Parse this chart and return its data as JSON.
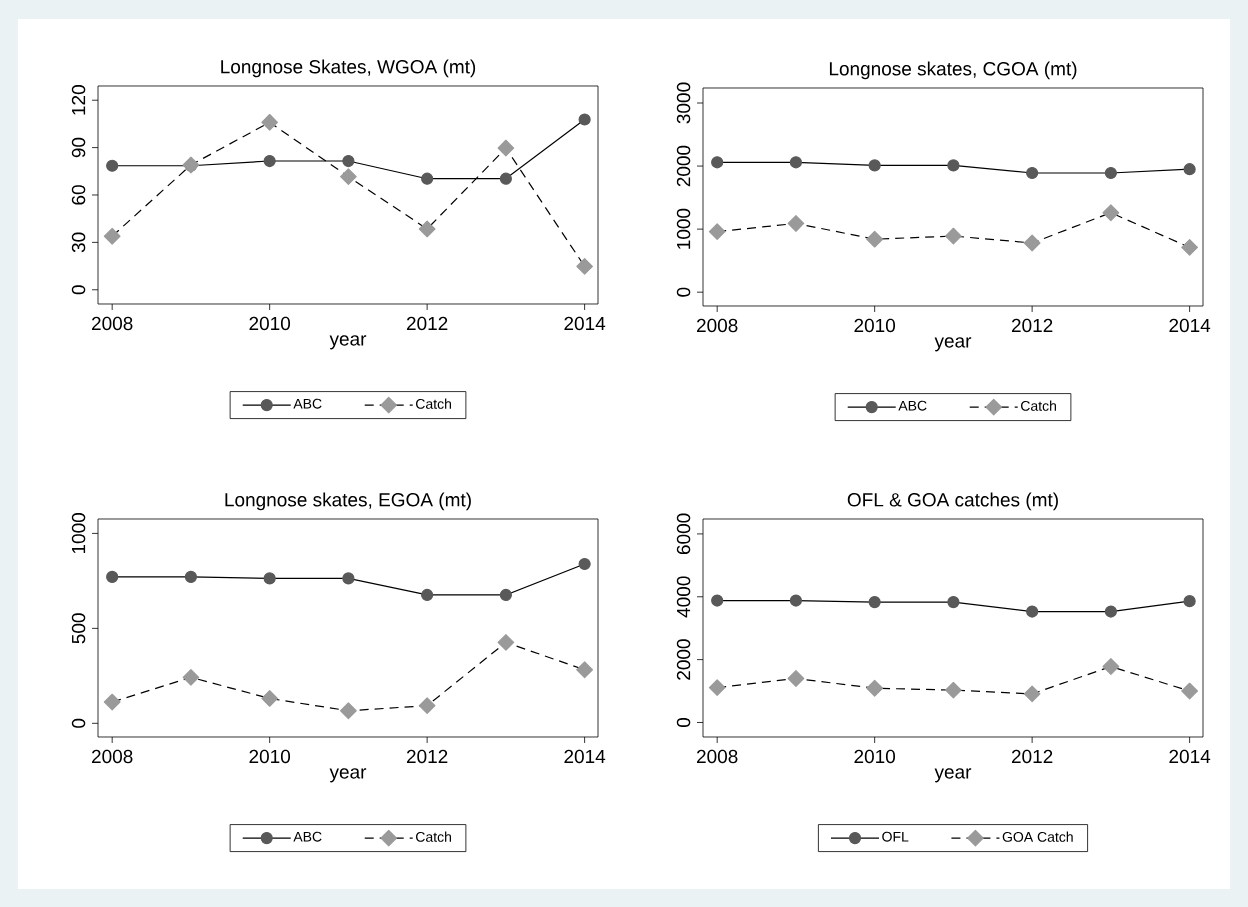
{
  "chart_data": [
    {
      "type": "line",
      "title": "Longnose Skates, WGOA (mt)",
      "xlabel": "year",
      "x": [
        2008,
        2009,
        2010,
        2011,
        2012,
        2013,
        2014
      ],
      "xlim": [
        2007.82,
        2014.17
      ],
      "xticks": [
        2008,
        2010,
        2012,
        2014
      ],
      "ylim": [
        -9,
        129
      ],
      "yticks": [
        0,
        30,
        60,
        90,
        120
      ],
      "legend": "bottom",
      "series": [
        {
          "name": "ABC",
          "color": "#595959",
          "marker": "circle",
          "line_style": "solid",
          "values": [
            78.5,
            78.5,
            81.5,
            81.5,
            70.3,
            70.3,
            107.8
          ]
        },
        {
          "name": "Catch",
          "color": "#9a9a9a",
          "marker": "diamond",
          "line_style": "dashed",
          "values": [
            33.9,
            79,
            106,
            71.6,
            38.5,
            89.7,
            14.8
          ]
        }
      ]
    },
    {
      "type": "line",
      "title": "Longnose skates, CGOA (mt)",
      "xlabel": "year",
      "x": [
        2008,
        2009,
        2010,
        2011,
        2012,
        2013,
        2014
      ],
      "xlim": [
        2007.82,
        2014.17
      ],
      "xticks": [
        2008,
        2010,
        2012,
        2014
      ],
      "ylim": [
        -219,
        3238
      ],
      "yticks": [
        0,
        1000,
        2000,
        3000
      ],
      "legend": "bottom",
      "series": [
        {
          "name": "ABC",
          "color": "#595959",
          "marker": "circle",
          "line_style": "solid",
          "values": [
            2060,
            2060,
            2010,
            2010,
            1890,
            1890,
            1950
          ]
        },
        {
          "name": "Catch",
          "color": "#9a9a9a",
          "marker": "diamond",
          "line_style": "dashed",
          "values": [
            960,
            1090,
            840,
            890,
            780,
            1260,
            710
          ]
        }
      ]
    },
    {
      "type": "line",
      "title": "Longnose skates, EGOA (mt)",
      "xlabel": "year",
      "x": [
        2008,
        2009,
        2010,
        2011,
        2012,
        2013,
        2014
      ],
      "xlim": [
        2007.82,
        2014.17
      ],
      "xticks": [
        2008,
        2010,
        2012,
        2014
      ],
      "ylim": [
        -72,
        1076
      ],
      "yticks": [
        0,
        500,
        1000
      ],
      "legend": "bottom",
      "series": [
        {
          "name": "ABC",
          "color": "#595959",
          "marker": "circle",
          "line_style": "solid",
          "values": [
            771,
            771,
            763,
            763,
            676,
            676,
            839
          ]
        },
        {
          "name": "Catch",
          "color": "#9a9a9a",
          "marker": "diamond",
          "line_style": "dashed",
          "values": [
            112,
            242,
            131,
            66,
            93,
            426,
            282
          ]
        }
      ]
    },
    {
      "type": "line",
      "title": "OFL & GOA catches (mt)",
      "xlabel": "year",
      "x": [
        2008,
        2009,
        2010,
        2011,
        2012,
        2013,
        2014
      ],
      "xlim": [
        2007.82,
        2014.17
      ],
      "xticks": [
        2008,
        2010,
        2012,
        2014
      ],
      "ylim": [
        -462,
        6475
      ],
      "yticks": [
        0,
        2000,
        4000,
        6000
      ],
      "legend": "bottom",
      "series": [
        {
          "name": "OFL",
          "color": "#595959",
          "marker": "circle",
          "line_style": "solid",
          "values": [
            3880,
            3880,
            3830,
            3830,
            3530,
            3530,
            3860
          ]
        },
        {
          "name": "GOA Catch",
          "color": "#9a9a9a",
          "marker": "diamond",
          "line_style": "dashed",
          "values": [
            1110,
            1400,
            1090,
            1030,
            910,
            1780,
            1000
          ]
        }
      ]
    }
  ]
}
